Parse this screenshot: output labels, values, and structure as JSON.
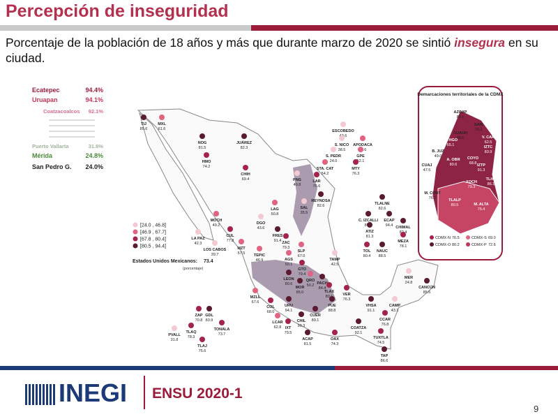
{
  "header": {
    "title": "Percepción de inseguridad",
    "subtitle": {
      "before": "Porcentaje de la población de 18 años y más que durante marzo de 2020 se sintió",
      "emphasis": "insegura",
      "after": "en su ciudad."
    }
  },
  "ranking": [
    {
      "city": "Ecatepec",
      "value": "94.4%"
    },
    {
      "city": "Uruapan",
      "value": "94.1%"
    },
    {
      "city": "Coatzacoalcos",
      "value": "92.1%"
    },
    {
      "city": "Puerto Vallarta",
      "value": "31.8%"
    },
    {
      "city": "Mérida",
      "value": "24.8%"
    },
    {
      "city": "San Pedro G.",
      "value": "24.0%"
    }
  ],
  "legend": [
    {
      "label": "[24.0 , 46.8]",
      "color": "#f3c9d2"
    },
    {
      "label": "[46.9 , 67.7]",
      "color": "#e06482"
    },
    {
      "label": "[67.8 , 80.4]",
      "color": "#a3244a"
    },
    {
      "label": "[80.5 , 94.4]",
      "color": "#5a1a30"
    }
  ],
  "national": {
    "label": "Estados Unidos Mexicanos:",
    "value": "73.4",
    "note": "(porcentaje)"
  },
  "cities": [
    {
      "name": "TIJ",
      "value": "85.6"
    },
    {
      "name": "MXL",
      "value": "61.6"
    },
    {
      "name": "NOG",
      "value": "81.5"
    },
    {
      "name": "HMO",
      "value": "74.2"
    },
    {
      "name": "JUÁREZ",
      "value": "82.3"
    },
    {
      "name": "CHIH",
      "value": "69.4"
    },
    {
      "name": "PNG",
      "value": "40.8"
    },
    {
      "name": "LAR",
      "value": "75.6"
    },
    {
      "name": "ESCOBEDO",
      "value": "43.6"
    },
    {
      "name": "S. NICO",
      "value": "38.5"
    },
    {
      "name": "APODACA",
      "value": "50.6"
    },
    {
      "name": "S. PEDR",
      "value": "24.0"
    },
    {
      "name": "GPE",
      "value": "52.1"
    },
    {
      "name": "STA. CAT",
      "value": "54.2"
    },
    {
      "name": "MTY",
      "value": "76.3"
    },
    {
      "name": "SAL",
      "value": "35.5"
    },
    {
      "name": "REYNOSA",
      "value": "82.6"
    },
    {
      "name": "LAG",
      "value": "50.8"
    },
    {
      "name": "DGO",
      "value": "43.6"
    },
    {
      "name": "MOCH",
      "value": "49.2"
    },
    {
      "name": "CUL",
      "value": "77.8"
    },
    {
      "name": "LA PAZ",
      "value": "42.3"
    },
    {
      "name": "LOS CABOS",
      "value": "39.7"
    },
    {
      "name": "MZT",
      "value": "57.5"
    },
    {
      "name": "FRES",
      "value": "91.4"
    },
    {
      "name": "ZAC",
      "value": "79.3"
    },
    {
      "name": "TEPIC",
      "value": "46.9"
    },
    {
      "name": "SLP",
      "value": "67.0"
    },
    {
      "name": "AGS",
      "value": "50.1"
    },
    {
      "name": "TAMP",
      "value": "42.5"
    },
    {
      "name": "GTO",
      "value": "79.4"
    },
    {
      "name": "LEON",
      "value": "80.6"
    },
    {
      "name": "QRO",
      "value": "50.2"
    },
    {
      "name": "PACH",
      "value": "84.4"
    },
    {
      "name": "MOR",
      "value": "85.0"
    },
    {
      "name": "TLAX",
      "value": "80.1"
    },
    {
      "name": "VER",
      "value": "76.3"
    },
    {
      "name": "PUE",
      "value": "88.8"
    },
    {
      "name": "MZLL",
      "value": "67.6"
    },
    {
      "name": "COL",
      "value": "68.0"
    },
    {
      "name": "URU",
      "value": "94.1"
    },
    {
      "name": "CHIL",
      "value": "90.3"
    },
    {
      "name": "CUER",
      "value": "89.1"
    },
    {
      "name": "ZAP",
      "value": "70.8"
    },
    {
      "name": "GDL",
      "value": "83.9"
    },
    {
      "name": "TONALA",
      "value": "73.7"
    },
    {
      "name": "TLAQ",
      "value": "78.3"
    },
    {
      "name": "TLAJ",
      "value": "75.6"
    },
    {
      "name": "PVALL",
      "value": "31.8"
    },
    {
      "name": "LCAR",
      "value": "62.8"
    },
    {
      "name": "IXT",
      "value": "79.5"
    },
    {
      "name": "ACAP",
      "value": "81.5"
    },
    {
      "name": "OAX",
      "value": "74.3"
    },
    {
      "name": "COATZA",
      "value": "92.1"
    },
    {
      "name": "VHSA",
      "value": "91.1"
    },
    {
      "name": "CAMP",
      "value": "43.1"
    },
    {
      "name": "CCAR",
      "value": "76.8"
    },
    {
      "name": "TUXTLA",
      "value": "74.5"
    },
    {
      "name": "TAP",
      "value": "86.6"
    },
    {
      "name": "MER",
      "value": "24.8"
    },
    {
      "name": "CANCÚN",
      "value": "85.6"
    },
    {
      "name": "TLALNE",
      "value": "82.6"
    },
    {
      "name": "C. IZCALLI",
      "value": "87.7"
    },
    {
      "name": "ECAP",
      "value": "94.4"
    },
    {
      "name": "CHIMAL",
      "value": "82.4"
    },
    {
      "name": "ATIZ",
      "value": "81.3"
    },
    {
      "name": "MEZA",
      "value": "78.1"
    },
    {
      "name": "TOL",
      "value": "80.4"
    },
    {
      "name": "NAUC",
      "value": "88.5"
    }
  ],
  "cdmx": {
    "title": "Demarcaciones territoriales de la CDMX",
    "boroughs": [
      {
        "name": "AZCAP",
        "value": "80.1"
      },
      {
        "name": "GAM",
        "value": "76.2"
      },
      {
        "name": "CUAUH",
        "value": "68.5"
      },
      {
        "name": "M. HGO",
        "value": "65.1"
      },
      {
        "name": "V. CAR",
        "value": "62.5"
      },
      {
        "name": "IZTC",
        "value": "83.9"
      },
      {
        "name": "B. JUZ",
        "value": "49.0"
      },
      {
        "name": "A. OBR",
        "value": "80.6"
      },
      {
        "name": "COYO",
        "value": "68.8"
      },
      {
        "name": "CUAJ",
        "value": "47.5"
      },
      {
        "name": "IZTP",
        "value": "91.3"
      },
      {
        "name": "TLHC",
        "value": "86.1"
      },
      {
        "name": "XOCH",
        "value": "79.3"
      },
      {
        "name": "M. CONT",
        "value": "76.7"
      },
      {
        "name": "TLALP",
        "value": "80.5"
      },
      {
        "name": "M. ALTA",
        "value": "75.4"
      }
    ],
    "regions": [
      {
        "name": "CDMX-N",
        "value": "76.5"
      },
      {
        "name": "CDMX-S",
        "value": "69.0"
      },
      {
        "name": "CDMX-O",
        "value": "80.2"
      },
      {
        "name": "CDMX-P",
        "value": "72.6"
      }
    ]
  },
  "footer": {
    "logo": "INEGI",
    "survey": "ENSU 2020-1",
    "page": "9"
  }
}
